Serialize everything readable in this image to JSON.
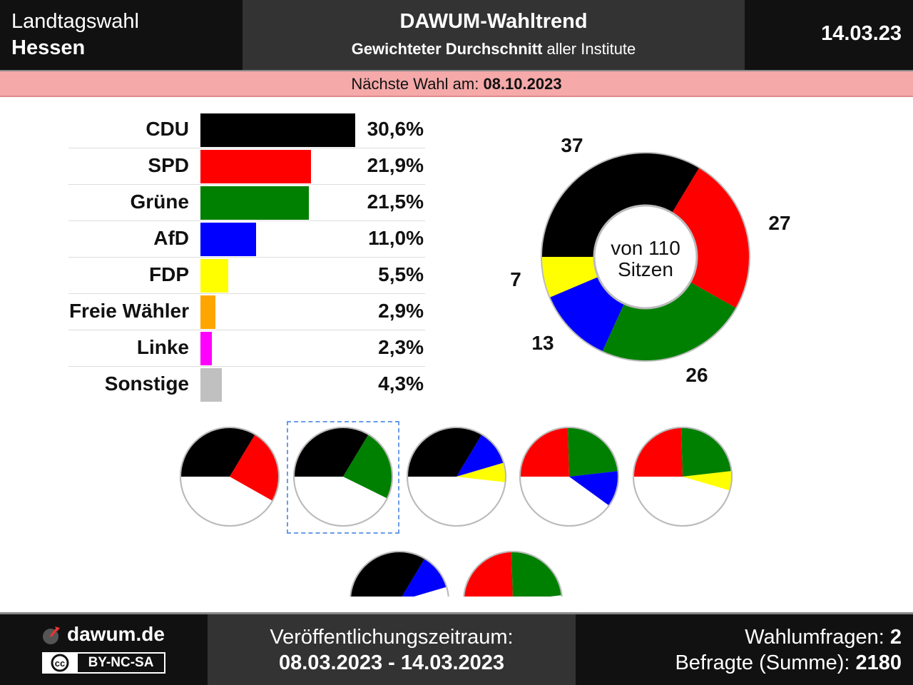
{
  "header": {
    "election_type": "Landtagswahl",
    "state": "Hessen",
    "title": "DAWUM-Wahltrend",
    "subtitle_bold": "Gewichteter Durchschnitt",
    "subtitle_rest": "aller Institute",
    "date": "14.03.23"
  },
  "next_election": {
    "label": "Nächste Wahl am:",
    "date": "08.10.2023"
  },
  "chart_data": [
    {
      "type": "bar",
      "categories": [
        "CDU",
        "SPD",
        "Grüne",
        "AfD",
        "FDP",
        "Freie Wähler",
        "Linke",
        "Sonstige"
      ],
      "values": [
        30.6,
        21.9,
        21.5,
        11.0,
        5.5,
        2.9,
        2.3,
        4.3
      ],
      "value_labels": [
        "30,6%",
        "21,9%",
        "21,5%",
        "11,0%",
        "5,5%",
        "2,9%",
        "2,3%",
        "4,3%"
      ],
      "colors": [
        "#000000",
        "#ff0000",
        "#008000",
        "#0000ff",
        "#ffff00",
        "#ffa500",
        "#ff00ff",
        "#c0c0c0"
      ]
    },
    {
      "type": "pie",
      "variant": "donut",
      "categories": [
        "CDU",
        "SPD",
        "Grüne",
        "AfD",
        "FDP"
      ],
      "values": [
        37,
        27,
        26,
        13,
        7
      ],
      "colors": [
        "#000000",
        "#ff0000",
        "#008000",
        "#0000ff",
        "#ffff00"
      ],
      "center_line1": "von 110",
      "center_line2": "Sitzen"
    }
  ],
  "coalitions": [
    {
      "parties": [
        "CDU",
        "SPD"
      ],
      "seats": [
        37,
        27
      ],
      "colors": [
        "#000000",
        "#ff0000"
      ],
      "selected": false
    },
    {
      "parties": [
        "CDU",
        "Grüne"
      ],
      "seats": [
        37,
        26
      ],
      "colors": [
        "#000000",
        "#008000"
      ],
      "selected": true
    },
    {
      "parties": [
        "CDU",
        "AfD",
        "FDP"
      ],
      "seats": [
        37,
        13,
        7
      ],
      "colors": [
        "#000000",
        "#0000ff",
        "#ffff00"
      ],
      "selected": false
    },
    {
      "parties": [
        "SPD",
        "Grüne",
        "AfD"
      ],
      "seats": [
        27,
        26,
        13
      ],
      "colors": [
        "#ff0000",
        "#008000",
        "#0000ff"
      ],
      "selected": false
    },
    {
      "parties": [
        "SPD",
        "Grüne",
        "FDP"
      ],
      "seats": [
        27,
        26,
        7
      ],
      "colors": [
        "#ff0000",
        "#008000",
        "#ffff00"
      ],
      "selected": false
    },
    {
      "parties": [
        "CDU",
        "AfD"
      ],
      "seats": [
        37,
        13
      ],
      "colors": [
        "#000000",
        "#0000ff"
      ],
      "selected": false,
      "partial": true
    },
    {
      "parties": [
        "SPD",
        "Grüne"
      ],
      "seats": [
        27,
        26
      ],
      "colors": [
        "#ff0000",
        "#008000"
      ],
      "selected": false,
      "partial": true
    }
  ],
  "footer": {
    "brand": "dawum.de",
    "license": "BY-NC-SA",
    "period_label": "Veröffentlichungszeitraum:",
    "period": "08.03.2023 - 14.03.2023",
    "polls_label": "Wahlumfragen:",
    "polls": "2",
    "respondents_label": "Befragte (Summe):",
    "respondents": "2180"
  }
}
